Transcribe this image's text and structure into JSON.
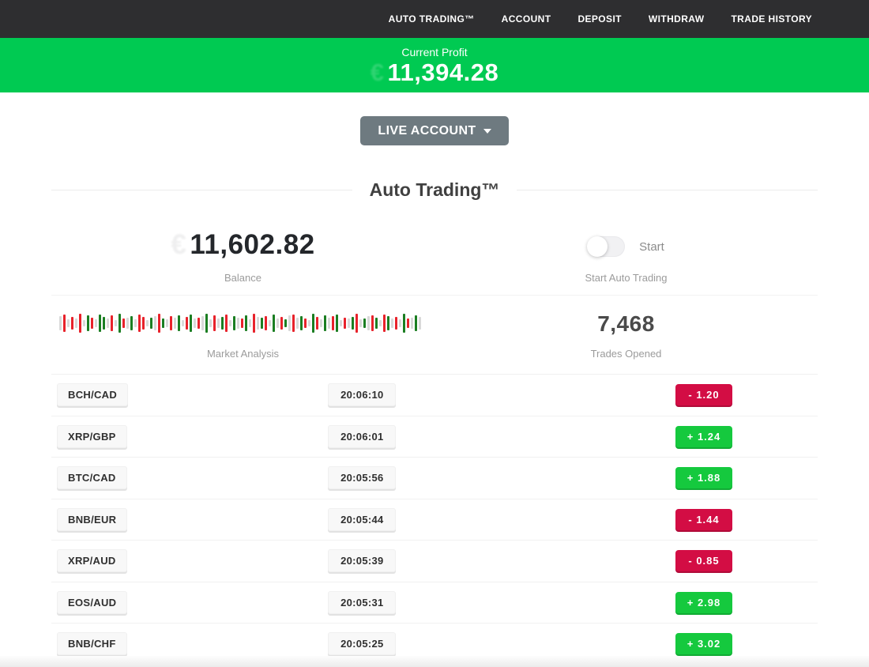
{
  "nav": {
    "items": [
      {
        "label": "AUTO TRADING™"
      },
      {
        "label": "ACCOUNT"
      },
      {
        "label": "DEPOSIT"
      },
      {
        "label": "WITHDRAW"
      },
      {
        "label": "TRADE HISTORY"
      }
    ]
  },
  "profit_banner": {
    "label": "Current Profit",
    "value": "11,394.28",
    "ghost_symbol": "€",
    "bg_color": "#00ca52"
  },
  "account_selector": {
    "label": "LIVE ACCOUNT"
  },
  "section": {
    "title": "Auto Trading™"
  },
  "stats": {
    "balance": {
      "value": "11,602.82",
      "ghost_symbol": "€",
      "label": "Balance"
    },
    "auto_toggle": {
      "label": "Start",
      "sublabel": "Start Auto Trading",
      "state": "off"
    },
    "market": {
      "label": "Market Analysis"
    },
    "trades": {
      "value": "7,468",
      "label": "Trades Opened"
    }
  },
  "chart_data": {
    "type": "bar",
    "title": "Market Analysis",
    "description": "Dense strip of thin vertical bars (mini market ticker), colors red/green/gray, heights in px",
    "colors": {
      "r": "#e8222b",
      "g": "#1b7e22",
      "x": "#d9d9d9"
    },
    "bars": [
      [
        "x",
        18
      ],
      [
        "r",
        22
      ],
      [
        "x",
        10
      ],
      [
        "r",
        16
      ],
      [
        "x",
        12
      ],
      [
        "r",
        24
      ],
      [
        "x",
        8
      ],
      [
        "g",
        20
      ],
      [
        "r",
        14
      ],
      [
        "x",
        10
      ],
      [
        "g",
        22
      ],
      [
        "g",
        16
      ],
      [
        "x",
        12
      ],
      [
        "r",
        20
      ],
      [
        "x",
        8
      ],
      [
        "g",
        24
      ],
      [
        "r",
        12
      ],
      [
        "x",
        14
      ],
      [
        "g",
        18
      ],
      [
        "x",
        10
      ],
      [
        "r",
        22
      ],
      [
        "r",
        16
      ],
      [
        "x",
        8
      ],
      [
        "g",
        14
      ],
      [
        "x",
        18
      ],
      [
        "r",
        24
      ],
      [
        "g",
        12
      ],
      [
        "x",
        10
      ],
      [
        "r",
        18
      ],
      [
        "x",
        14
      ],
      [
        "g",
        20
      ],
      [
        "x",
        8
      ],
      [
        "r",
        16
      ],
      [
        "g",
        22
      ],
      [
        "x",
        12
      ],
      [
        "r",
        14
      ],
      [
        "x",
        18
      ],
      [
        "g",
        24
      ],
      [
        "x",
        10
      ],
      [
        "r",
        20
      ],
      [
        "x",
        12
      ],
      [
        "g",
        16
      ],
      [
        "r",
        22
      ],
      [
        "x",
        8
      ],
      [
        "g",
        18
      ],
      [
        "x",
        14
      ],
      [
        "r",
        12
      ],
      [
        "g",
        20
      ],
      [
        "x",
        10
      ],
      [
        "r",
        24
      ],
      [
        "x",
        16
      ],
      [
        "g",
        14
      ],
      [
        "r",
        18
      ],
      [
        "x",
        8
      ],
      [
        "g",
        22
      ],
      [
        "x",
        12
      ],
      [
        "r",
        16
      ],
      [
        "g",
        10
      ],
      [
        "x",
        20
      ],
      [
        "r",
        22
      ],
      [
        "x",
        14
      ],
      [
        "g",
        18
      ],
      [
        "r",
        12
      ],
      [
        "x",
        8
      ],
      [
        "g",
        24
      ],
      [
        "r",
        16
      ],
      [
        "x",
        10
      ],
      [
        "g",
        20
      ],
      [
        "x",
        14
      ],
      [
        "r",
        18
      ],
      [
        "g",
        22
      ],
      [
        "x",
        8
      ],
      [
        "r",
        14
      ],
      [
        "x",
        12
      ],
      [
        "g",
        16
      ],
      [
        "r",
        24
      ],
      [
        "x",
        10
      ],
      [
        "g",
        12
      ],
      [
        "x",
        18
      ],
      [
        "r",
        20
      ],
      [
        "g",
        14
      ],
      [
        "x",
        8
      ],
      [
        "r",
        22
      ],
      [
        "g",
        18
      ],
      [
        "x",
        12
      ],
      [
        "r",
        16
      ],
      [
        "x",
        10
      ],
      [
        "g",
        24
      ],
      [
        "r",
        12
      ],
      [
        "x",
        14
      ],
      [
        "g",
        20
      ],
      [
        "x",
        16
      ]
    ]
  },
  "trades_table": {
    "rows": [
      {
        "pair": "BCH/CAD",
        "time": "20:06:10",
        "change": "- 1.20",
        "direction": "loss"
      },
      {
        "pair": "XRP/GBP",
        "time": "20:06:01",
        "change": "+ 1.24",
        "direction": "profit"
      },
      {
        "pair": "BTC/CAD",
        "time": "20:05:56",
        "change": "+ 1.88",
        "direction": "profit"
      },
      {
        "pair": "BNB/EUR",
        "time": "20:05:44",
        "change": "- 1.44",
        "direction": "loss"
      },
      {
        "pair": "XRP/AUD",
        "time": "20:05:39",
        "change": "- 0.85",
        "direction": "loss"
      },
      {
        "pair": "EOS/AUD",
        "time": "20:05:31",
        "change": "+ 2.98",
        "direction": "profit"
      },
      {
        "pair": "BNB/CHF",
        "time": "20:05:25",
        "change": "+ 3.02",
        "direction": "profit"
      }
    ]
  },
  "colors": {
    "nav_bg": "#2e2e30",
    "banner_green": "#00ca52",
    "badge_green": "#15c93e",
    "badge_red": "#d30d44",
    "button_gray": "#6e7a80"
  }
}
